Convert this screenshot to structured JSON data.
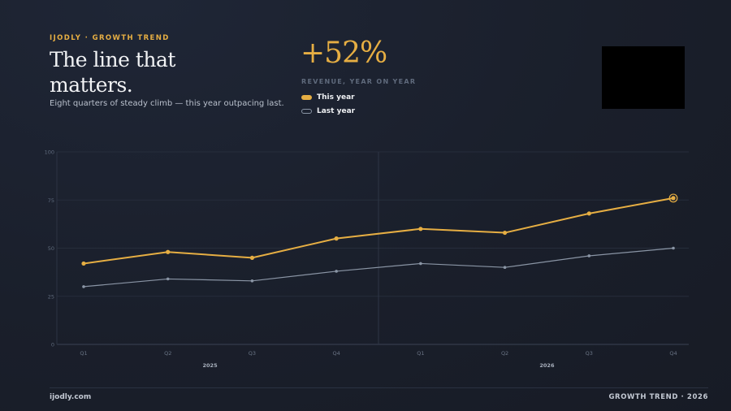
{
  "header": {
    "eyebrow": "IJODLY · GROWTH TREND",
    "headline": "The line that matters.",
    "subtitle": "Eight quarters of steady climb — this year outpacing last."
  },
  "kpi": {
    "value": "+52%",
    "label": "REVENUE, YEAR ON YEAR"
  },
  "legend": [
    {
      "label": "This year"
    },
    {
      "label": "Last year"
    }
  ],
  "footer": {
    "left": "ijodly.com",
    "right": "GROWTH TREND · 2026"
  },
  "colors": {
    "accent": "#e6ae43",
    "secondary": "#8a95a5",
    "background": "#1a1f2b"
  },
  "chart_data": {
    "type": "line",
    "categories": [
      "Q1",
      "Q2",
      "Q3",
      "Q4",
      "Q1",
      "Q2",
      "Q3",
      "Q4"
    ],
    "groups": [
      {
        "label": "2025",
        "span": [
          0,
          3
        ]
      },
      {
        "label": "2026",
        "span": [
          4,
          7
        ]
      }
    ],
    "series": [
      {
        "name": "This year",
        "color": "#e6ae43",
        "values": [
          42,
          48,
          45,
          55,
          60,
          58,
          68,
          76
        ],
        "highlight_last": true
      },
      {
        "name": "Last year",
        "color": "#8a95a5",
        "values": [
          30,
          34,
          33,
          38,
          42,
          40,
          46,
          50
        ]
      }
    ],
    "ylim": [
      0,
      100
    ],
    "yticks": [
      0,
      25,
      50,
      75,
      100
    ],
    "grid": true,
    "divider_between_groups": true
  }
}
